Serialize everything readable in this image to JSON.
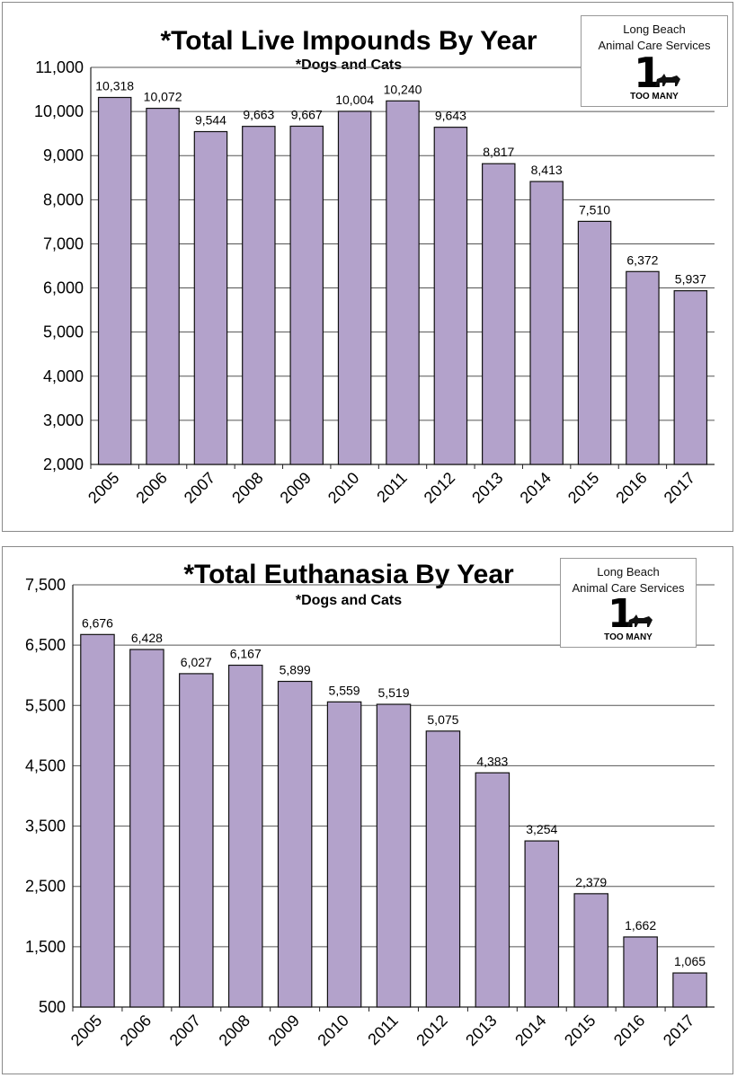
{
  "chart_data": [
    {
      "type": "bar",
      "title": "*Total Live Impounds By Year",
      "subtitle": "*Dogs and Cats",
      "categories": [
        "2005",
        "2006",
        "2007",
        "2008",
        "2009",
        "2010",
        "2011",
        "2012",
        "2013",
        "2014",
        "2015",
        "2016",
        "2017"
      ],
      "values": [
        10318,
        10072,
        9544,
        9663,
        9667,
        10004,
        10240,
        9643,
        8817,
        8413,
        7510,
        6372,
        5937
      ],
      "value_labels": [
        "10,318",
        "10,072",
        "9,544",
        "9,663",
        "9,667",
        "10,004",
        "10,240",
        "9,643",
        "8,817",
        "8,413",
        "7,510",
        "6,372",
        "5,937"
      ],
      "ylim": [
        2000,
        11000
      ],
      "yticks": [
        2000,
        3000,
        4000,
        5000,
        6000,
        7000,
        8000,
        9000,
        10000,
        11000
      ],
      "ytick_labels": [
        "2,000",
        "3,000",
        "4,000",
        "5,000",
        "6,000",
        "7,000",
        "8,000",
        "9,000",
        "10,000",
        "11,000"
      ],
      "grid": true,
      "bar_color": "#b3a2cb",
      "logo": {
        "line1": "Long Beach",
        "line2": "Animal Care Services",
        "mark": "1",
        "sub": "TOO MANY"
      }
    },
    {
      "type": "bar",
      "title": "*Total Euthanasia By Year",
      "subtitle": "*Dogs and Cats",
      "categories": [
        "2005",
        "2006",
        "2007",
        "2008",
        "2009",
        "2010",
        "2011",
        "2012",
        "2013",
        "2014",
        "2015",
        "2016",
        "2017"
      ],
      "values": [
        6676,
        6428,
        6027,
        6167,
        5899,
        5559,
        5519,
        5075,
        4383,
        3254,
        2379,
        1662,
        1065
      ],
      "value_labels": [
        "6,676",
        "6,428",
        "6,027",
        "6,167",
        "5,899",
        "5,559",
        "5,519",
        "5,075",
        "4,383",
        "3,254",
        "2,379",
        "1,662",
        "1,065"
      ],
      "ylim": [
        500,
        7500
      ],
      "yticks": [
        500,
        1500,
        2500,
        3500,
        4500,
        5500,
        6500,
        7500
      ],
      "ytick_labels": [
        "500",
        "1,500",
        "2,500",
        "3,500",
        "4,500",
        "5,500",
        "6,500",
        "7,500"
      ],
      "grid": true,
      "bar_color": "#b3a2cb",
      "logo": {
        "line1": "Long Beach",
        "line2": "Animal Care Services",
        "mark": "1",
        "sub": "TOO MANY"
      }
    }
  ]
}
